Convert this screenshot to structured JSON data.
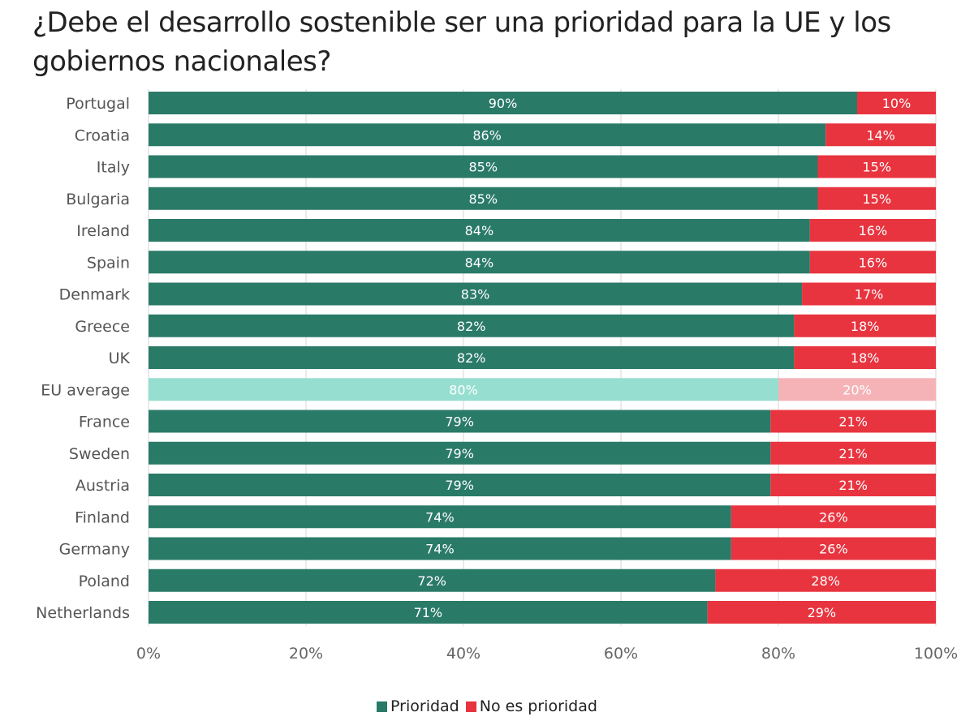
{
  "chart_data": {
    "type": "bar",
    "orientation": "horizontal",
    "stacked": true,
    "title": "¿Debe el desarrollo sostenible ser una prioridad para la UE y los gobiernos nacionales?",
    "categories": [
      "Portugal",
      "Croatia",
      "Italy",
      "Bulgaria",
      "Ireland",
      "Spain",
      "Denmark",
      "Greece",
      "UK",
      "EU average",
      "France",
      "Sweden",
      "Austria",
      "Finland",
      "Germany",
      "Poland",
      "Netherlands"
    ],
    "series": [
      {
        "name": "Prioridad",
        "color": "#2a7a68",
        "values": [
          90,
          86,
          85,
          85,
          84,
          84,
          83,
          82,
          82,
          80,
          79,
          79,
          79,
          74,
          74,
          72,
          71
        ]
      },
      {
        "name": "No es prioridad",
        "color": "#e8343f",
        "values": [
          10,
          14,
          15,
          15,
          16,
          16,
          17,
          18,
          18,
          20,
          21,
          21,
          21,
          26,
          26,
          28,
          29
        ]
      }
    ],
    "highlight": {
      "category": "EU average",
      "colors": [
        "#96dfd0",
        "#f5b3b7"
      ]
    },
    "xlim": [
      0,
      100
    ],
    "xticks": [
      "0%",
      "20%",
      "40%",
      "60%",
      "80%",
      "100%"
    ],
    "value_suffix": "%",
    "grid": true,
    "legend_position": "bottom"
  }
}
